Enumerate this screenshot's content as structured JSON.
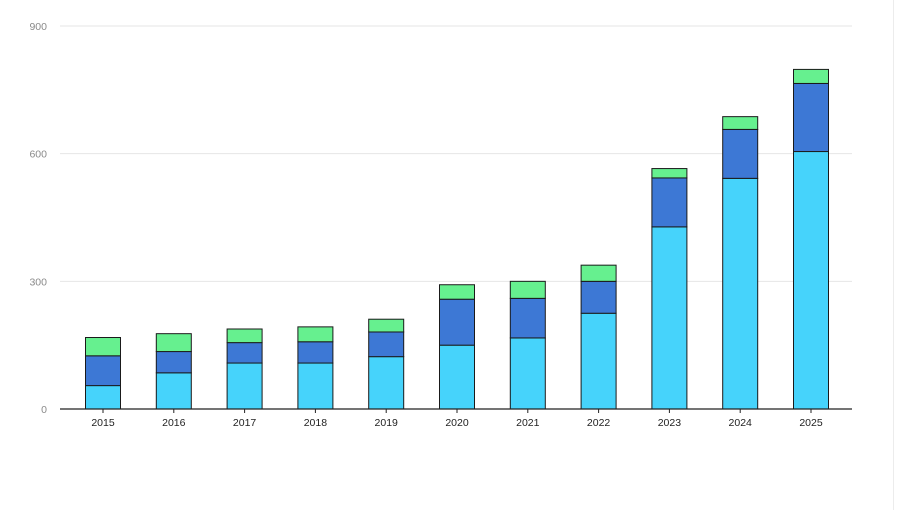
{
  "chart_data": {
    "type": "bar",
    "stacked": true,
    "categories": [
      "2015",
      "2016",
      "2017",
      "2018",
      "2019",
      "2020",
      "2021",
      "2022",
      "2023",
      "2024",
      "2025"
    ],
    "series": [
      {
        "color": "#46d3fb",
        "values": [
          55,
          85,
          108,
          108,
          123,
          150,
          167,
          225,
          428,
          542,
          605
        ]
      },
      {
        "color": "#3d78d5",
        "values": [
          70,
          50,
          48,
          50,
          58,
          108,
          93,
          75,
          115,
          115,
          160
        ]
      },
      {
        "color": "#66f08f",
        "values": [
          43,
          42,
          32,
          35,
          30,
          34,
          40,
          38,
          22,
          30,
          33
        ]
      }
    ],
    "title": "",
    "xlabel": "",
    "ylabel": "",
    "ylim": [
      0,
      900
    ],
    "yticks": [
      "0",
      "300",
      "600",
      "900"
    ],
    "grid": true,
    "legend": "none"
  }
}
